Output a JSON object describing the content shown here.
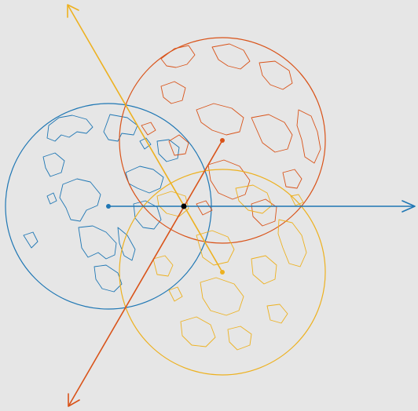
{
  "diagram": {
    "colors": {
      "background": "#e6e6e6",
      "blue": "#1f77b4",
      "orange": "#d95319",
      "yellow": "#edb120",
      "origin": "#000000"
    },
    "globes": [
      {
        "name": "blue-globe",
        "color": "#1f77b4",
        "shape": "circle",
        "content": "world-map-coastlines"
      },
      {
        "name": "orange-globe",
        "color": "#d95319",
        "shape": "circle",
        "content": "world-map-coastlines"
      },
      {
        "name": "yellow-globe",
        "color": "#edb120",
        "shape": "circle",
        "content": "world-map-coastlines"
      }
    ],
    "axes": [
      {
        "name": "blue-axis",
        "color": "#1f77b4",
        "direction": "right"
      },
      {
        "name": "orange-axis",
        "color": "#d95319",
        "direction": "down-left"
      },
      {
        "name": "yellow-axis",
        "color": "#edb120",
        "direction": "up-left"
      }
    ]
  }
}
